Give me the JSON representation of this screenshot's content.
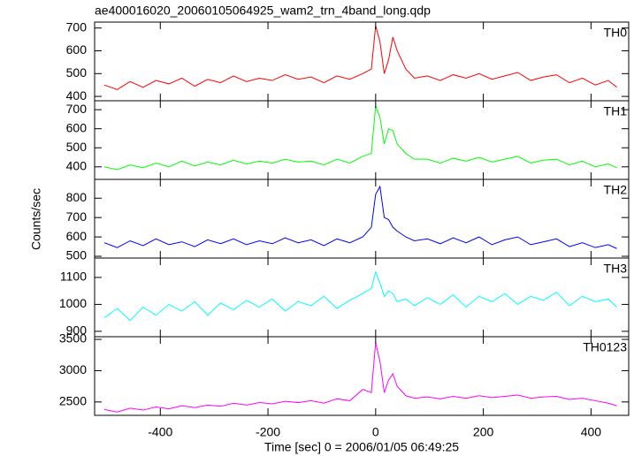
{
  "title": "ae400016020_20060105064925_wam2_trn_4band_long.qdp",
  "y_label": "Counts/sec",
  "x_label": "Time [sec] 0 = 2006/01/05 06:49:25",
  "chart_data": [
    {
      "type": "line",
      "name": "TH0",
      "color": "#ff0000",
      "x": [
        -504,
        -480,
        -456,
        -432,
        -408,
        -384,
        -360,
        -336,
        -312,
        -288,
        -264,
        -240,
        -216,
        -192,
        -168,
        -144,
        -120,
        -96,
        -72,
        -48,
        -24,
        -8,
        0,
        8,
        16,
        24,
        32,
        40,
        56,
        72,
        96,
        120,
        144,
        168,
        192,
        216,
        240,
        264,
        288,
        312,
        336,
        360,
        384,
        408,
        432,
        448
      ],
      "values": [
        450,
        430,
        465,
        440,
        470,
        455,
        480,
        445,
        475,
        460,
        490,
        465,
        480,
        470,
        495,
        475,
        485,
        460,
        490,
        475,
        500,
        520,
        710,
        640,
        500,
        560,
        660,
        600,
        520,
        480,
        490,
        470,
        495,
        480,
        500,
        475,
        490,
        505,
        470,
        485,
        495,
        460,
        480,
        450,
        470,
        440
      ],
      "xlim": [
        -522,
        470
      ],
      "xticks": [
        -400,
        -200,
        0,
        200,
        400
      ],
      "ylim": [
        381,
        726
      ],
      "yticks": [
        400,
        500,
        600,
        700
      ]
    },
    {
      "type": "line",
      "name": "TH1",
      "color": "#00ff00",
      "x": [
        -504,
        -480,
        -456,
        -432,
        -408,
        -384,
        -360,
        -336,
        -312,
        -288,
        -264,
        -240,
        -216,
        -192,
        -168,
        -144,
        -120,
        -96,
        -72,
        -48,
        -24,
        -8,
        0,
        8,
        16,
        24,
        32,
        40,
        56,
        72,
        96,
        120,
        144,
        168,
        192,
        216,
        240,
        264,
        288,
        312,
        336,
        360,
        384,
        408,
        432,
        448
      ],
      "values": [
        400,
        385,
        410,
        395,
        420,
        400,
        430,
        405,
        425,
        410,
        435,
        415,
        430,
        420,
        440,
        425,
        430,
        410,
        440,
        420,
        455,
        470,
        720,
        660,
        520,
        600,
        590,
        520,
        470,
        440,
        440,
        420,
        445,
        430,
        450,
        425,
        440,
        455,
        420,
        435,
        440,
        410,
        430,
        400,
        415,
        395
      ],
      "xlim": [
        -522,
        470
      ],
      "xticks": [
        -400,
        -200,
        0,
        200,
        400
      ],
      "ylim": [
        334,
        747
      ],
      "yticks": [
        400,
        500,
        600,
        700
      ]
    },
    {
      "type": "line",
      "name": "TH2",
      "color": "#0000ff",
      "x": [
        -504,
        -480,
        -456,
        -432,
        -408,
        -384,
        -360,
        -336,
        -312,
        -288,
        -264,
        -240,
        -216,
        -192,
        -168,
        -144,
        -120,
        -96,
        -72,
        -48,
        -24,
        -8,
        0,
        8,
        16,
        24,
        32,
        40,
        56,
        72,
        96,
        120,
        144,
        168,
        192,
        216,
        240,
        264,
        288,
        312,
        336,
        360,
        384,
        408,
        432,
        448
      ],
      "values": [
        570,
        545,
        580,
        555,
        590,
        560,
        575,
        550,
        585,
        565,
        590,
        560,
        580,
        565,
        595,
        570,
        585,
        555,
        590,
        570,
        600,
        650,
        820,
        860,
        700,
        690,
        650,
        630,
        600,
        580,
        590,
        565,
        595,
        570,
        600,
        560,
        585,
        600,
        560,
        575,
        590,
        550,
        570,
        545,
        560,
        540
      ],
      "xlim": [
        -522,
        470
      ],
      "xticks": [
        -400,
        -200,
        0,
        200,
        400
      ],
      "ylim": [
        491,
        897
      ],
      "yticks": [
        500,
        600,
        700,
        800
      ]
    },
    {
      "type": "line",
      "name": "TH3",
      "color": "#00ffff",
      "x": [
        -504,
        -480,
        -456,
        -432,
        -408,
        -384,
        -360,
        -336,
        -312,
        -288,
        -264,
        -240,
        -216,
        -192,
        -168,
        -144,
        -120,
        -96,
        -72,
        -48,
        -24,
        -8,
        0,
        8,
        16,
        24,
        32,
        40,
        56,
        72,
        96,
        120,
        144,
        168,
        192,
        216,
        240,
        264,
        288,
        312,
        336,
        360,
        384,
        408,
        432,
        448
      ],
      "values": [
        950,
        985,
        940,
        990,
        960,
        1000,
        975,
        1010,
        960,
        1005,
        980,
        1015,
        990,
        1020,
        975,
        1010,
        995,
        1030,
        985,
        1015,
        1040,
        1060,
        1120,
        1080,
        1030,
        1050,
        1040,
        1010,
        1020,
        995,
        1025,
        1000,
        1035,
        990,
        1030,
        1010,
        1040,
        1000,
        1030,
        1015,
        1045,
        995,
        1030,
        1010,
        1020,
        990
      ],
      "xlim": [
        -522,
        470
      ],
      "xticks": [
        -400,
        -200,
        0,
        200,
        400
      ],
      "ylim": [
        880,
        1172
      ],
      "yticks": [
        900,
        1000,
        1100
      ]
    },
    {
      "type": "line",
      "name": "TH0123",
      "color": "#ff00ff",
      "x": [
        -504,
        -480,
        -456,
        -432,
        -408,
        -384,
        -360,
        -336,
        -312,
        -288,
        -264,
        -240,
        -216,
        -192,
        -168,
        -144,
        -120,
        -96,
        -72,
        -48,
        -24,
        -8,
        0,
        8,
        16,
        24,
        32,
        40,
        56,
        72,
        96,
        120,
        144,
        168,
        192,
        216,
        240,
        264,
        288,
        312,
        336,
        360,
        384,
        408,
        432,
        448
      ],
      "values": [
        2380,
        2340,
        2400,
        2370,
        2420,
        2390,
        2440,
        2410,
        2450,
        2430,
        2480,
        2450,
        2490,
        2470,
        2510,
        2490,
        2520,
        2480,
        2550,
        2520,
        2700,
        2650,
        3450,
        3150,
        2650,
        2850,
        2950,
        2750,
        2600,
        2560,
        2580,
        2550,
        2590,
        2560,
        2600,
        2570,
        2590,
        2610,
        2560,
        2580,
        2590,
        2540,
        2560,
        2520,
        2480,
        2440
      ],
      "xlim": [
        -522,
        470
      ],
      "xticks": [
        -400,
        -200,
        0,
        200,
        400
      ],
      "ylim": [
        2286,
        3543
      ],
      "yticks": [
        2500,
        3000,
        3500
      ]
    }
  ]
}
